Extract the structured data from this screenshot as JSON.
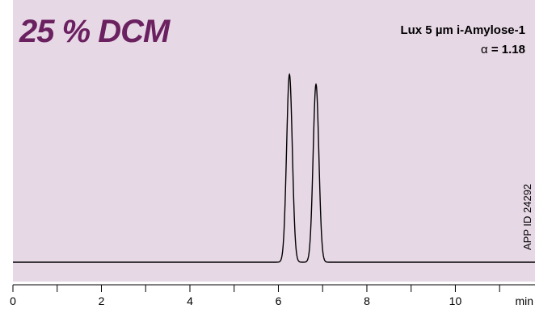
{
  "colors": {
    "panel_bg": "#e7d8e6",
    "title_color": "#6b2160",
    "trace": "#000000",
    "axis": "#000000"
  },
  "header": {
    "title": "25 % DCM",
    "column": "Lux 5 µm i-Amylose-1",
    "alpha_symbol": "α",
    "alpha_text": " = 1.18"
  },
  "side_label": "APP ID 24292",
  "chart_data": {
    "type": "line",
    "title": "25 % DCM",
    "xlabel": "min",
    "ylabel": "",
    "xlim": [
      0,
      11.8
    ],
    "ylim": [
      0,
      1.0
    ],
    "x_ticks_major": [
      0,
      2,
      4,
      6,
      8,
      10
    ],
    "x_ticks_minor": [
      1,
      3,
      5,
      7,
      9,
      11
    ],
    "x_tick_labels": [
      "0",
      "2",
      "4",
      "6",
      "8",
      "10"
    ],
    "x_unit_label": "min",
    "grid": false,
    "legend": "none",
    "peaks": [
      {
        "retention_time": 6.25,
        "height": 0.95,
        "width": 0.065
      },
      {
        "retention_time": 6.85,
        "height": 0.9,
        "width": 0.065
      }
    ],
    "baseline": 0.0
  }
}
